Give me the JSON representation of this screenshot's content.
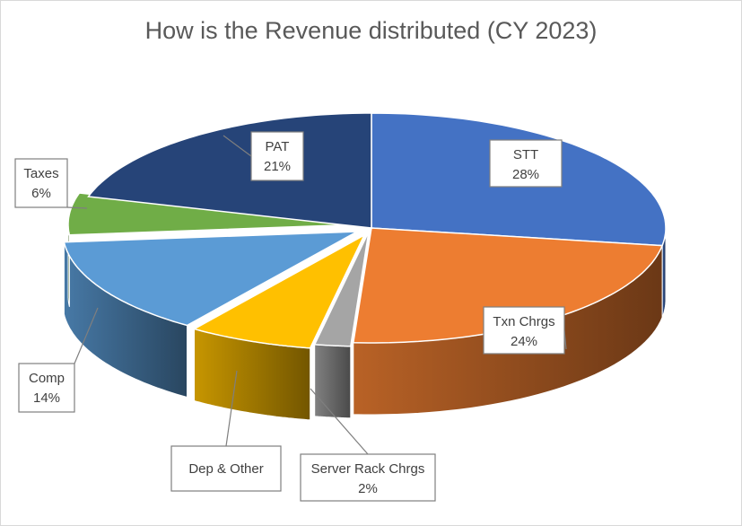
{
  "chart_data": {
    "type": "pie",
    "style": "3d-exploded-slices-with-callouts",
    "title": "How is the Revenue distributed (CY 2023)",
    "slices": [
      {
        "label": "STT",
        "value": 28,
        "value_label": "28%",
        "color": "#4472c4"
      },
      {
        "label": "Txn Chrgs",
        "value": 24,
        "value_label": "24%",
        "color": "#ed7d31"
      },
      {
        "label": "Server Rack Chrgs",
        "value": 2,
        "value_label": "2%",
        "color": "#a5a5a5"
      },
      {
        "label": "Dep & Other",
        "value": 7,
        "value_label": "",
        "color": "#ffc000"
      },
      {
        "label": "Comp",
        "value": 14,
        "value_label": "14%",
        "color": "#5b9bd5"
      },
      {
        "label": "Taxes",
        "value": 6,
        "value_label": "6%",
        "color": "#70ad47"
      },
      {
        "label": "PAT",
        "value": 21,
        "value_label": "21%",
        "color": "#264478"
      }
    ],
    "legend": "none"
  }
}
